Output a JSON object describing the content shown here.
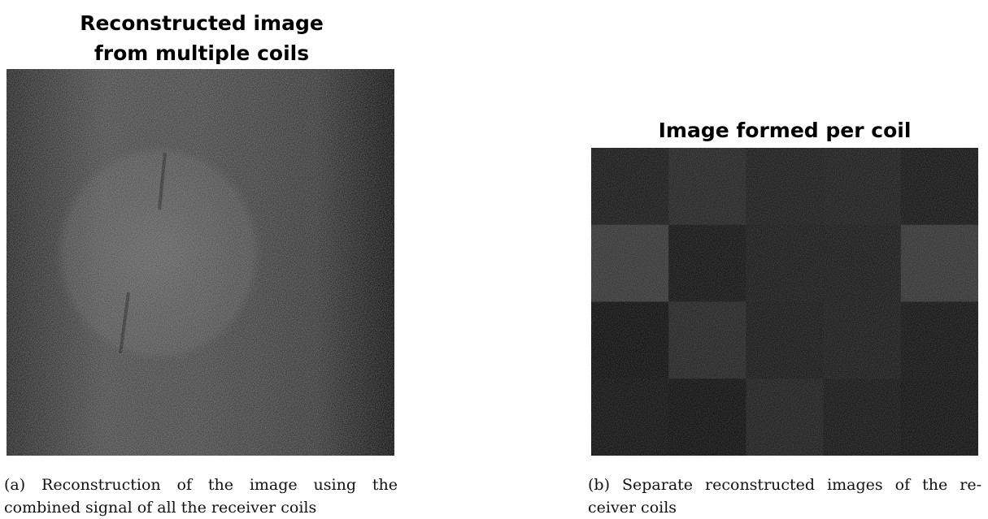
{
  "figure_a": {
    "title_lines": [
      "Reconstructed image",
      "from multiple coils"
    ],
    "caption_lines": [
      "(a) Reconstruction of the image using the",
      "combined signal of all the receiver coils"
    ]
  },
  "figure_b": {
    "title": "Image formed per coil",
    "caption_lines": [
      "(b) Separate reconstructed images of the re-",
      "ceiver coils"
    ]
  }
}
